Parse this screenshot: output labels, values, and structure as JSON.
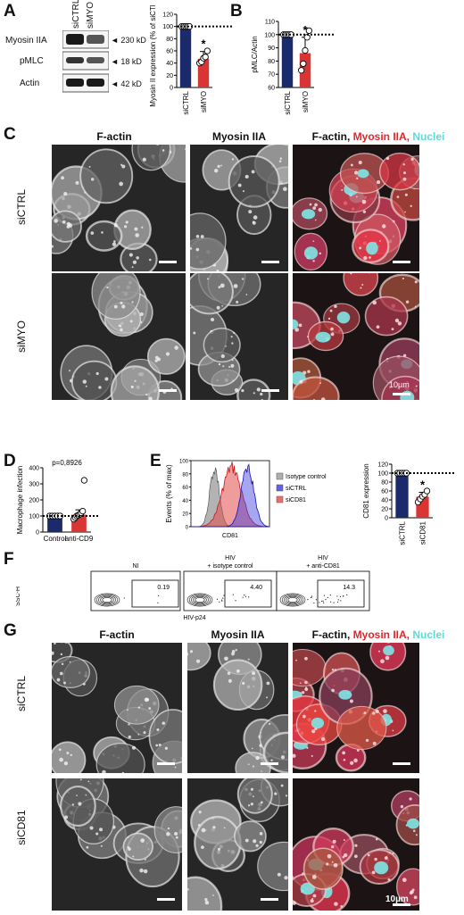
{
  "panels": {
    "A": "A",
    "B": "B",
    "C": "C",
    "D": "D",
    "E": "E",
    "F": "F",
    "G": "G"
  },
  "blot": {
    "lanes": [
      "siCTRL",
      "siMYO"
    ],
    "rows": [
      {
        "name": "Myosin IIA",
        "mw": "◄ 230 kD"
      },
      {
        "name": "pMLC",
        "mw": "◄ 18 kD"
      },
      {
        "name": "Actin",
        "mw": "◄ 42 kD"
      }
    ]
  },
  "titles": {
    "factin": "F-actin",
    "myosin": "Myosin IIA",
    "merge_1": "F-actin, ",
    "merge_2": "Myosin IIA",
    "merge_sep": ", ",
    "merge_3": "Nuclei",
    "merge_color_red": "#e0262b",
    "merge_color_cyan": "#5fd8d8"
  },
  "rows_c": [
    "siCTRL",
    "siMYO"
  ],
  "rows_g": [
    "siCTRL",
    "siCD81"
  ],
  "scale_c": "10µm",
  "scale_g": "10µm",
  "chart_data": [
    {
      "id": "A-bar",
      "type": "bar",
      "categories": [
        "siCTRL",
        "siMYO"
      ],
      "values": [
        100,
        47
      ],
      "errors": [
        2,
        12
      ],
      "points": [
        [
          100,
          100,
          100,
          100,
          100
        ],
        [
          40,
          42,
          48,
          50,
          60
        ]
      ],
      "colors": [
        "#1b2a6b",
        "#d93535"
      ],
      "ylabel": "Myosin II expression (% of siCTRL)",
      "ylim": [
        0,
        120
      ],
      "yticks": [
        0,
        20,
        40,
        60,
        80,
        100,
        120
      ],
      "reference_line": 100,
      "significance": [
        "",
        "*"
      ]
    },
    {
      "id": "B-bar",
      "type": "bar",
      "categories": [
        "siCTRL",
        "siMYO"
      ],
      "values": [
        100,
        86
      ],
      "errors": [
        0.5,
        12
      ],
      "points": [
        [
          100,
          100,
          100,
          100,
          100
        ],
        [
          73,
          78,
          88,
          98,
          103
        ]
      ],
      "colors": [
        "#1b2a6b",
        "#d93535"
      ],
      "ylabel": "pMLC/Actin",
      "ylim": [
        60,
        110
      ],
      "yticks": [
        60,
        70,
        80,
        90,
        100,
        110
      ],
      "reference_line": 100,
      "significance": [
        "",
        "*"
      ]
    },
    {
      "id": "D-bar",
      "type": "bar",
      "categories": [
        "Control",
        "anti-CD9"
      ],
      "values": [
        100,
        108
      ],
      "errors": [
        2,
        30
      ],
      "points": [
        [
          100,
          100,
          100,
          100,
          100
        ],
        [
          80,
          90,
          100,
          105,
          110,
          120,
          130,
          322
        ]
      ],
      "colors": [
        "#1b2a6b",
        "#d93535"
      ],
      "ylabel": "Macrophage infection",
      "ylim": [
        0,
        400
      ],
      "yticks": [
        0,
        100,
        200,
        300,
        400
      ],
      "reference_line": 100,
      "annotation": "p=0,8926"
    },
    {
      "id": "E-hist",
      "type": "area",
      "xlabel": "CD81",
      "ylabel": "Events (% of max)",
      "ylim": [
        0,
        100
      ],
      "yticks": [
        0,
        20,
        40,
        60,
        80,
        100
      ],
      "legend": [
        {
          "name": "Isotype control",
          "color": "#9a9a9a"
        },
        {
          "name": "siCTRL",
          "color": "#3a3ae0"
        },
        {
          "name": "siCD81",
          "color": "#e24a4a"
        }
      ]
    },
    {
      "id": "E-bar",
      "type": "bar",
      "categories": [
        "siCTRL",
        "siCD81"
      ],
      "values": [
        100,
        47
      ],
      "errors": [
        2,
        10
      ],
      "points": [
        [
          100,
          100,
          100,
          100,
          100
        ],
        [
          35,
          42,
          48,
          52,
          60
        ]
      ],
      "colors": [
        "#1b2a6b",
        "#d93535"
      ],
      "ylabel": "CD81 expression",
      "ylim": [
        0,
        120
      ],
      "yticks": [
        0,
        20,
        40,
        60,
        80,
        100,
        120
      ],
      "reference_line": 100,
      "significance": [
        "",
        "*"
      ]
    },
    {
      "id": "F-flow",
      "type": "scatter",
      "ylabel": "SSC-H",
      "xlabel": "HIV-p24",
      "conditions": [
        "NI",
        "HIV\n+ isotype control",
        "HIV\n+ anti-CD81"
      ],
      "gate_values": [
        "0.19",
        "4.40",
        "14.3"
      ]
    }
  ]
}
